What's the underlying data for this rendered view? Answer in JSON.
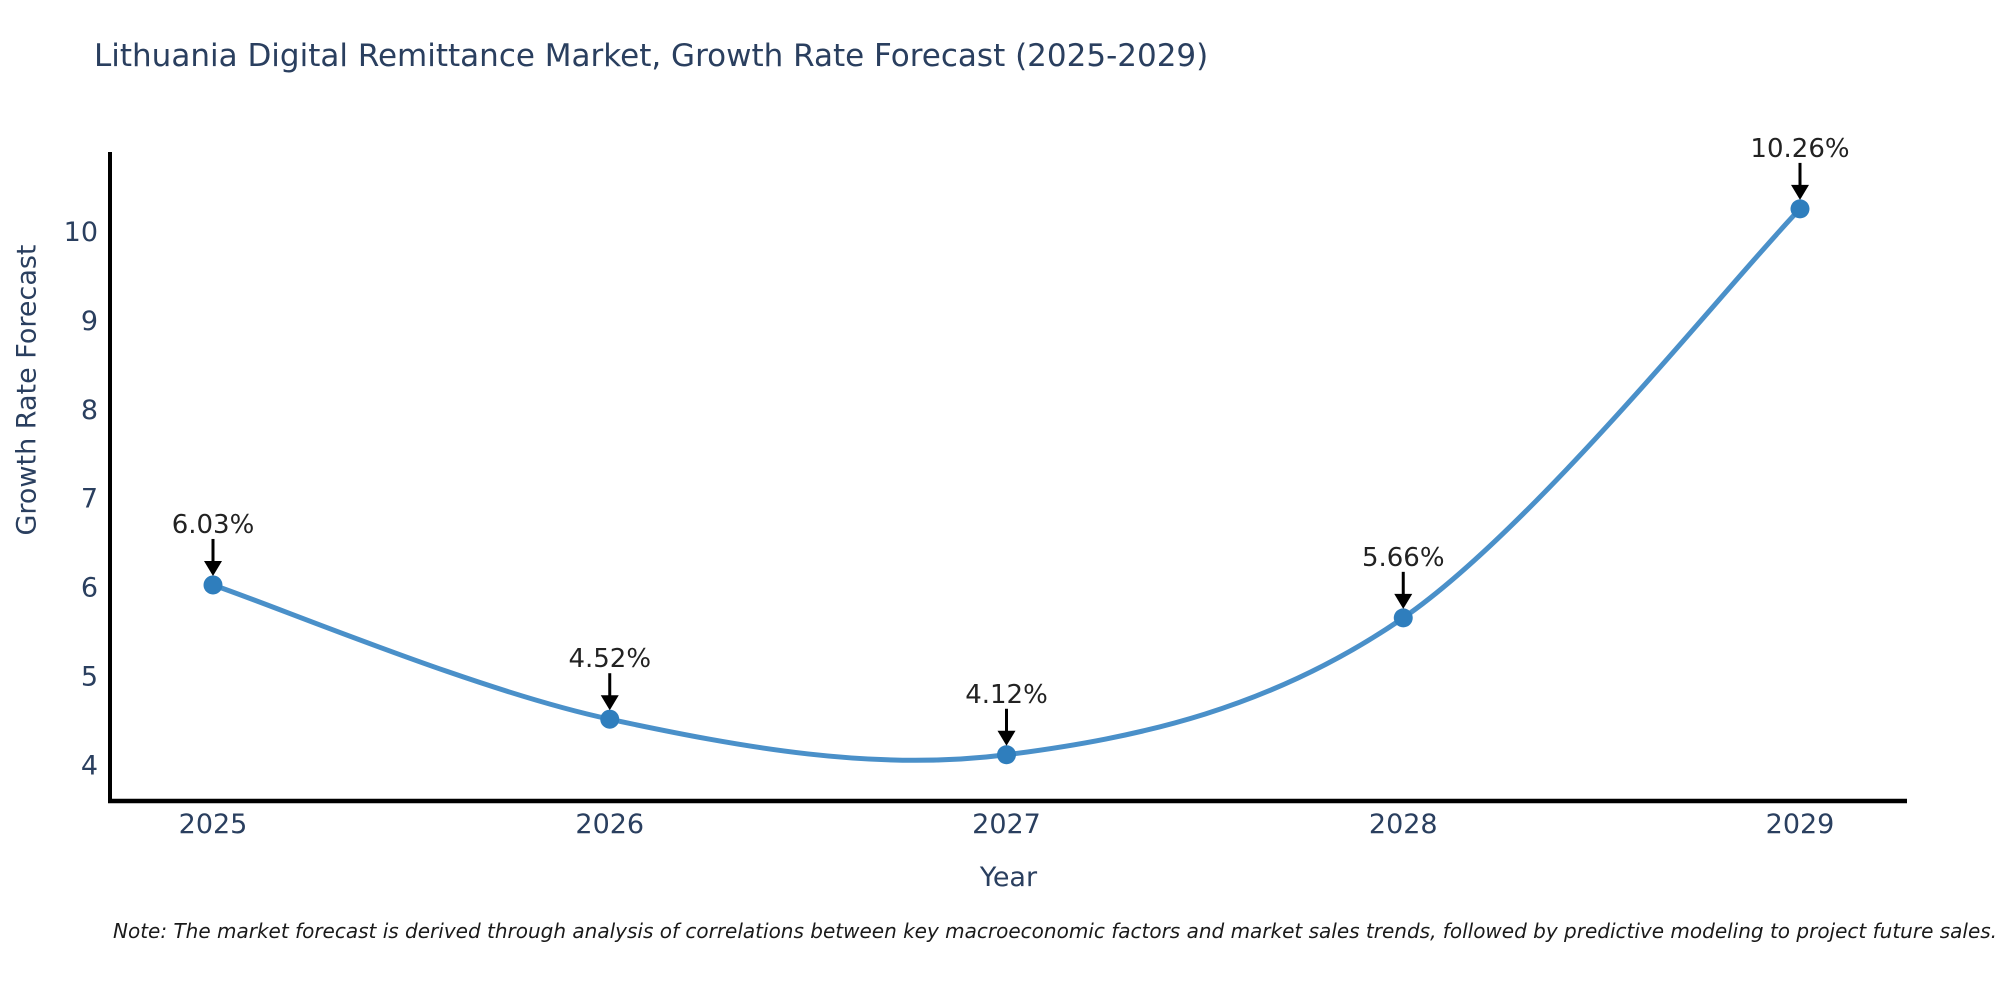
{
  "header": {
    "title": "Lithuania Digital Remittance Market, Growth Rate Forecast (2025-2029)"
  },
  "footer": {
    "note": "Note: The market forecast is derived through analysis of correlations between key macroeconomic factors and market sales trends, followed by predictive modeling to project future sales."
  },
  "chart_data": {
    "type": "line",
    "title": "Lithuania Digital Remittance Market, Growth Rate Forecast (2025-2029)",
    "xlabel": "Year",
    "ylabel": "Growth Rate Forecast",
    "categories": [
      "2025",
      "2026",
      "2027",
      "2028",
      "2029"
    ],
    "values": [
      6.03,
      4.52,
      4.12,
      5.66,
      10.26
    ],
    "point_labels": [
      "6.03%",
      "4.52%",
      "4.12%",
      "5.66%",
      "10.26%"
    ],
    "yticks": [
      4,
      5,
      6,
      7,
      8,
      9,
      10
    ],
    "ylim": [
      3.6,
      10.9
    ],
    "grid": false,
    "legend": "none",
    "line_shape": "spline",
    "annotation_arrows": true,
    "colors": {
      "line": "#4a90c9",
      "marker": "#2f7ebd",
      "spine": "#000000",
      "axis_text": "#2a3f5f",
      "annotation_text": "#222222"
    }
  }
}
